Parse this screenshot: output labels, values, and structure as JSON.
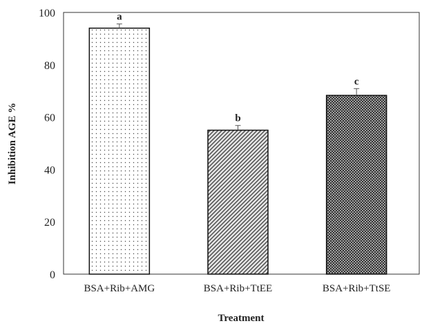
{
  "chart_data": {
    "type": "bar",
    "title": "",
    "xlabel": "Treatment",
    "ylabel": "Inhibition AGE %",
    "ylim": [
      0,
      100
    ],
    "yticks": [
      0,
      20,
      40,
      60,
      80,
      100
    ],
    "categories": [
      "BSA+Rib+AMG",
      "BSA+Rib+TtEE",
      "BSA+Rib+TtSE"
    ],
    "values": [
      94,
      55,
      68.3
    ],
    "errors": [
      1.6,
      1.8,
      2.6
    ],
    "significance_labels": [
      "a",
      "b",
      "c"
    ],
    "fill_patterns": [
      "sparse-dots",
      "diagonal-hatch",
      "dense-dots"
    ],
    "grid": false,
    "legend": "none"
  }
}
